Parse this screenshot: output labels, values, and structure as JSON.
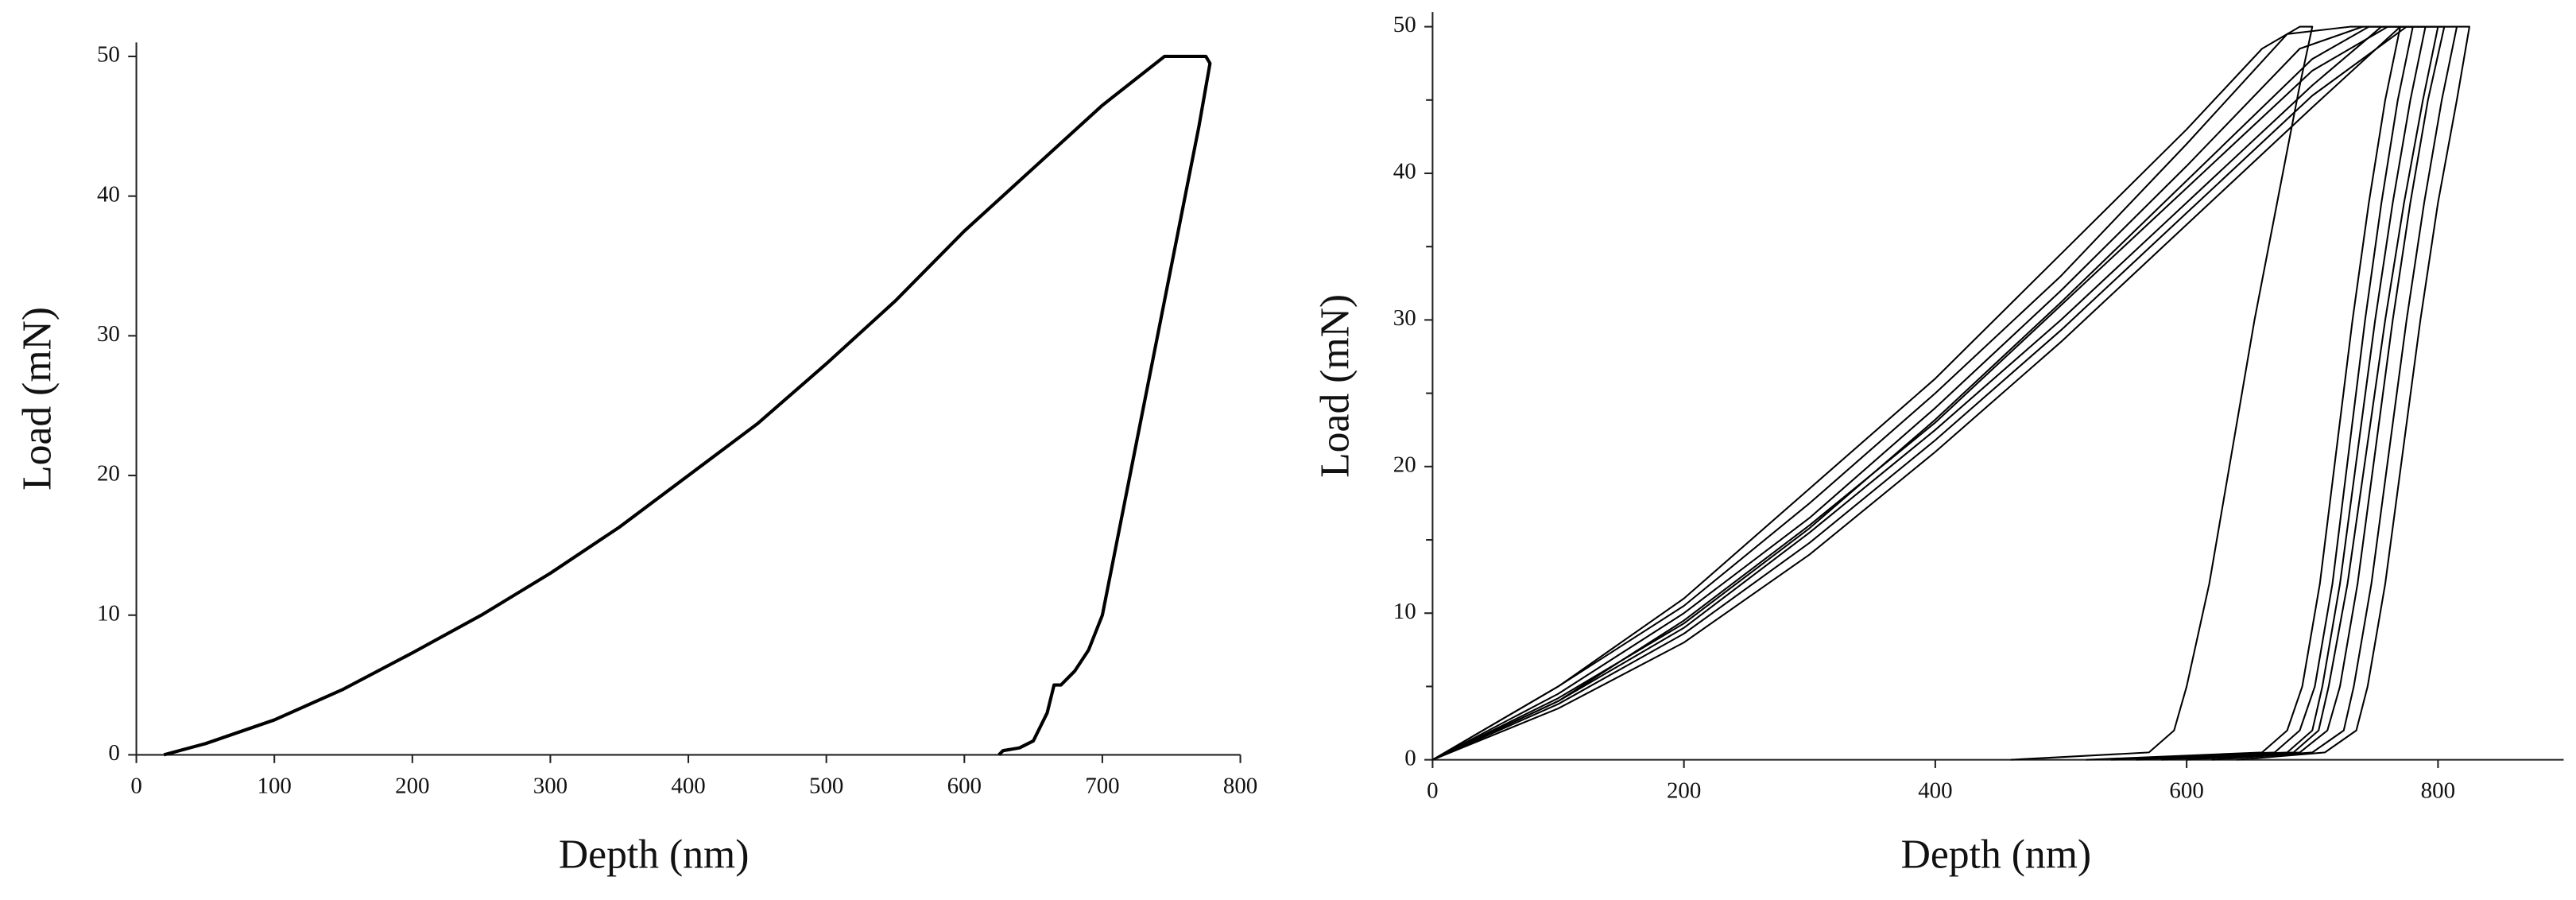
{
  "chart_data": [
    {
      "type": "line",
      "xlabel": "Depth (nm)",
      "ylabel": "Load (mN)",
      "xlim": [
        0,
        800
      ],
      "ylim": [
        0,
        51
      ],
      "xticks": [
        0,
        100,
        200,
        300,
        400,
        500,
        600,
        700,
        800
      ],
      "yticks": [
        0,
        10,
        20,
        30,
        40,
        50
      ],
      "series": [
        {
          "color": "#000000",
          "x": [
            20,
            50,
            100,
            150,
            200,
            250,
            300,
            350,
            400,
            450,
            500,
            550,
            600,
            650,
            700,
            745,
            775,
            778,
            770,
            760,
            750,
            740,
            730,
            720,
            710,
            700,
            690,
            680,
            670,
            665,
            660,
            650,
            640,
            628,
            625
          ],
          "values": [
            0,
            0.8,
            2.5,
            4.7,
            7.3,
            10,
            13,
            16.3,
            20,
            23.7,
            28,
            32.5,
            37.5,
            42,
            46.5,
            50,
            50,
            49.5,
            45,
            40,
            35,
            30,
            25,
            20,
            15,
            10,
            7.5,
            6,
            5,
            5,
            3,
            1,
            0.5,
            0.3,
            0
          ]
        }
      ]
    },
    {
      "type": "line",
      "xlabel": "Depth (nm)",
      "ylabel": "Load (mN)",
      "xlim": [
        0,
        900
      ],
      "ylim": [
        0,
        51
      ],
      "xticks": [
        0,
        200,
        400,
        600,
        800
      ],
      "yticks": [
        0,
        10,
        20,
        30,
        40,
        50
      ],
      "yminorticks": [
        5,
        15,
        25,
        35,
        45
      ],
      "series": [
        {
          "color": "#000000",
          "x": [
            0,
            100,
            200,
            300,
            400,
            500,
            600,
            700,
            755,
            790,
            778,
            764,
            750,
            736,
            722,
            708,
            700,
            680,
            560
          ],
          "values": [
            0,
            4,
            9,
            15.5,
            22.5,
            30,
            38,
            46,
            50,
            50,
            45,
            38,
            30,
            21,
            12,
            5,
            2,
            0.5,
            0
          ]
        },
        {
          "color": "#000000",
          "x": [
            0,
            100,
            200,
            300,
            400,
            500,
            600,
            690,
            740,
            805,
            792,
            778,
            764,
            750,
            736,
            722,
            712,
            690,
            600
          ],
          "values": [
            0,
            4.5,
            10,
            16.5,
            24,
            32,
            40.5,
            48.5,
            50,
            50,
            45,
            38,
            30,
            21,
            12,
            5,
            2,
            0.5,
            0
          ]
        },
        {
          "color": "#000000",
          "x": [
            0,
            100,
            200,
            300,
            400,
            500,
            600,
            700,
            770,
            825,
            815,
            800,
            786,
            772,
            758,
            744,
            735,
            710,
            640
          ],
          "values": [
            0,
            3.5,
            8,
            14,
            21,
            28.5,
            36.5,
            44.5,
            50,
            50,
            45,
            38,
            30,
            21,
            12,
            5,
            2,
            0.5,
            0
          ]
        },
        {
          "color": "#000000",
          "x": [
            0,
            100,
            200,
            300,
            400,
            500,
            600,
            680,
            730,
            770,
            758,
            745,
            732,
            719,
            706,
            692,
            680,
            660,
            520
          ],
          "values": [
            0,
            5,
            10.5,
            17.5,
            25,
            33,
            42,
            49.5,
            50,
            50,
            45,
            38,
            30,
            21,
            12,
            5,
            2,
            0.5,
            0
          ]
        },
        {
          "color": "#000000",
          "x": [
            0,
            100,
            200,
            300,
            400,
            500,
            600,
            700,
            760,
            800,
            788,
            773,
            758,
            743,
            728,
            713,
            705,
            685,
            580
          ],
          "values": [
            0,
            4,
            9.5,
            16,
            23,
            31,
            39,
            47,
            50,
            50,
            45,
            38,
            30,
            21,
            12,
            5,
            2,
            0.5,
            0
          ]
        },
        {
          "color": "#000000",
          "x": [
            0,
            100,
            200,
            300,
            400,
            500,
            600,
            700,
            745,
            780,
            768,
            755,
            742,
            729,
            716,
            702,
            690,
            670,
            540
          ],
          "values": [
            0,
            4.2,
            9.3,
            15.8,
            23.2,
            31.2,
            39.5,
            47.8,
            50,
            50,
            45,
            38,
            30,
            21,
            12,
            5,
            2,
            0.5,
            0
          ]
        },
        {
          "color": "#000000",
          "x": [
            0,
            100,
            200,
            300,
            400,
            500,
            600,
            700,
            775,
            815,
            803,
            789,
            775,
            761,
            747,
            733,
            725,
            700,
            620
          ],
          "values": [
            0,
            3.8,
            8.6,
            14.8,
            21.8,
            29.3,
            37.3,
            45.3,
            50,
            50,
            45,
            38,
            30,
            21,
            12,
            5,
            2,
            0.5,
            0
          ]
        },
        {
          "color": "#000000",
          "x": [
            0,
            100,
            200,
            300,
            400,
            500,
            600,
            660,
            690,
            700,
            690,
            672,
            654,
            636,
            618,
            600,
            590,
            570,
            460
          ],
          "values": [
            0,
            5,
            11,
            18.5,
            26,
            34.5,
            43,
            48.5,
            50,
            50,
            46,
            38,
            30,
            21,
            12,
            5,
            2,
            0.5,
            0
          ]
        }
      ]
    }
  ]
}
